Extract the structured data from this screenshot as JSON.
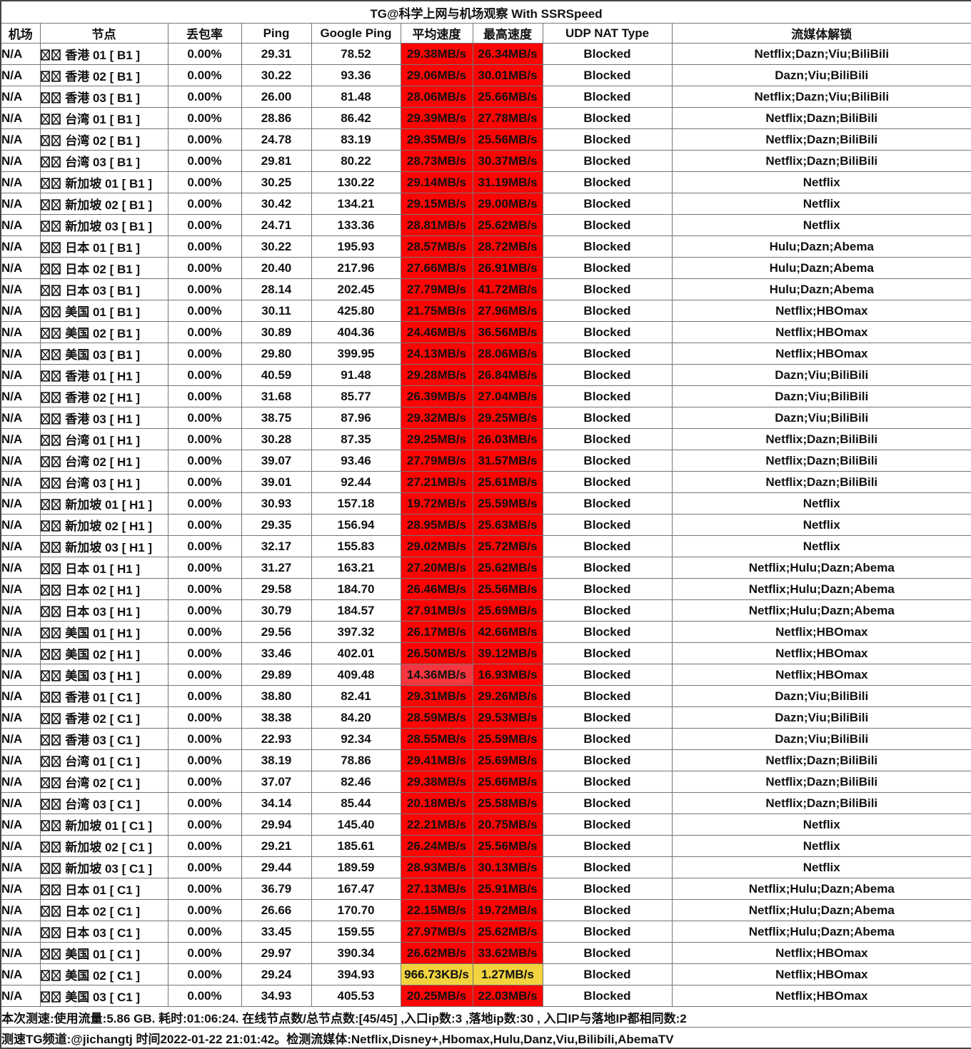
{
  "title": "TG@科学上网与机场观察 With SSRSpeed",
  "columns": [
    "机场",
    "节点",
    "丢包率",
    "Ping",
    "Google Ping",
    "平均速度",
    "最高速度",
    "UDP NAT Type",
    "流媒体解锁"
  ],
  "palette": {
    "red": "#fb0505",
    "light_red": "#f5353f",
    "yellow": "#f1d33e"
  },
  "rows": [
    {
      "airport": "N/A",
      "node": "香港 01 [ B1 ]",
      "loss": "0.00%",
      "ping": "29.31",
      "google_ping": "78.52",
      "avg_speed": "29.38MB/s",
      "avg_color": "red",
      "max_speed": "26.34MB/s",
      "max_color": "red",
      "udp_nat_type": "Blocked",
      "media": "Netflix;Dazn;Viu;BiliBili"
    },
    {
      "airport": "N/A",
      "node": "香港 02 [ B1 ]",
      "loss": "0.00%",
      "ping": "30.22",
      "google_ping": "93.36",
      "avg_speed": "29.06MB/s",
      "avg_color": "red",
      "max_speed": "30.01MB/s",
      "max_color": "red",
      "udp_nat_type": "Blocked",
      "media": "Dazn;Viu;BiliBili"
    },
    {
      "airport": "N/A",
      "node": "香港 03 [ B1 ]",
      "loss": "0.00%",
      "ping": "26.00",
      "google_ping": "81.48",
      "avg_speed": "28.06MB/s",
      "avg_color": "red",
      "max_speed": "25.66MB/s",
      "max_color": "red",
      "udp_nat_type": "Blocked",
      "media": "Netflix;Dazn;Viu;BiliBili"
    },
    {
      "airport": "N/A",
      "node": "台湾 01 [ B1 ]",
      "loss": "0.00%",
      "ping": "28.86",
      "google_ping": "86.42",
      "avg_speed": "29.39MB/s",
      "avg_color": "red",
      "max_speed": "27.78MB/s",
      "max_color": "red",
      "udp_nat_type": "Blocked",
      "media": "Netflix;Dazn;BiliBili"
    },
    {
      "airport": "N/A",
      "node": "台湾 02 [ B1 ]",
      "loss": "0.00%",
      "ping": "24.78",
      "google_ping": "83.19",
      "avg_speed": "29.35MB/s",
      "avg_color": "red",
      "max_speed": "25.56MB/s",
      "max_color": "red",
      "udp_nat_type": "Blocked",
      "media": "Netflix;Dazn;BiliBili"
    },
    {
      "airport": "N/A",
      "node": "台湾 03 [ B1 ]",
      "loss": "0.00%",
      "ping": "29.81",
      "google_ping": "80.22",
      "avg_speed": "28.73MB/s",
      "avg_color": "red",
      "max_speed": "30.37MB/s",
      "max_color": "red",
      "udp_nat_type": "Blocked",
      "media": "Netflix;Dazn;BiliBili"
    },
    {
      "airport": "N/A",
      "node": "新加坡 01 [ B1 ]",
      "loss": "0.00%",
      "ping": "30.25",
      "google_ping": "130.22",
      "avg_speed": "29.14MB/s",
      "avg_color": "red",
      "max_speed": "31.19MB/s",
      "max_color": "red",
      "udp_nat_type": "Blocked",
      "media": "Netflix"
    },
    {
      "airport": "N/A",
      "node": "新加坡 02 [ B1 ]",
      "loss": "0.00%",
      "ping": "30.42",
      "google_ping": "134.21",
      "avg_speed": "29.15MB/s",
      "avg_color": "red",
      "max_speed": "29.00MB/s",
      "max_color": "red",
      "udp_nat_type": "Blocked",
      "media": "Netflix"
    },
    {
      "airport": "N/A",
      "node": "新加坡 03 [ B1 ]",
      "loss": "0.00%",
      "ping": "24.71",
      "google_ping": "133.36",
      "avg_speed": "28.81MB/s",
      "avg_color": "red",
      "max_speed": "25.62MB/s",
      "max_color": "red",
      "udp_nat_type": "Blocked",
      "media": "Netflix"
    },
    {
      "airport": "N/A",
      "node": "日本 01 [ B1 ]",
      "loss": "0.00%",
      "ping": "30.22",
      "google_ping": "195.93",
      "avg_speed": "28.57MB/s",
      "avg_color": "red",
      "max_speed": "28.72MB/s",
      "max_color": "red",
      "udp_nat_type": "Blocked",
      "media": "Hulu;Dazn;Abema"
    },
    {
      "airport": "N/A",
      "node": "日本 02 [ B1 ]",
      "loss": "0.00%",
      "ping": "20.40",
      "google_ping": "217.96",
      "avg_speed": "27.66MB/s",
      "avg_color": "red",
      "max_speed": "26.91MB/s",
      "max_color": "red",
      "udp_nat_type": "Blocked",
      "media": "Hulu;Dazn;Abema"
    },
    {
      "airport": "N/A",
      "node": "日本 03 [ B1 ]",
      "loss": "0.00%",
      "ping": "28.14",
      "google_ping": "202.45",
      "avg_speed": "27.79MB/s",
      "avg_color": "red",
      "max_speed": "41.72MB/s",
      "max_color": "red",
      "udp_nat_type": "Blocked",
      "media": "Hulu;Dazn;Abema"
    },
    {
      "airport": "N/A",
      "node": "美国 01 [ B1 ]",
      "loss": "0.00%",
      "ping": "30.11",
      "google_ping": "425.80",
      "avg_speed": "21.75MB/s",
      "avg_color": "red",
      "max_speed": "27.96MB/s",
      "max_color": "red",
      "udp_nat_type": "Blocked",
      "media": "Netflix;HBOmax"
    },
    {
      "airport": "N/A",
      "node": "美国 02 [ B1 ]",
      "loss": "0.00%",
      "ping": "30.89",
      "google_ping": "404.36",
      "avg_speed": "24.46MB/s",
      "avg_color": "red",
      "max_speed": "36.56MB/s",
      "max_color": "red",
      "udp_nat_type": "Blocked",
      "media": "Netflix;HBOmax"
    },
    {
      "airport": "N/A",
      "node": "美国 03 [ B1 ]",
      "loss": "0.00%",
      "ping": "29.80",
      "google_ping": "399.95",
      "avg_speed": "24.13MB/s",
      "avg_color": "red",
      "max_speed": "28.06MB/s",
      "max_color": "red",
      "udp_nat_type": "Blocked",
      "media": "Netflix;HBOmax"
    },
    {
      "airport": "N/A",
      "node": "香港 01 [ H1 ]",
      "loss": "0.00%",
      "ping": "40.59",
      "google_ping": "91.48",
      "avg_speed": "29.28MB/s",
      "avg_color": "red",
      "max_speed": "26.84MB/s",
      "max_color": "red",
      "udp_nat_type": "Blocked",
      "media": "Dazn;Viu;BiliBili"
    },
    {
      "airport": "N/A",
      "node": "香港 02 [ H1 ]",
      "loss": "0.00%",
      "ping": "31.68",
      "google_ping": "85.77",
      "avg_speed": "26.39MB/s",
      "avg_color": "red",
      "max_speed": "27.04MB/s",
      "max_color": "red",
      "udp_nat_type": "Blocked",
      "media": "Dazn;Viu;BiliBili"
    },
    {
      "airport": "N/A",
      "node": "香港 03 [ H1 ]",
      "loss": "0.00%",
      "ping": "38.75",
      "google_ping": "87.96",
      "avg_speed": "29.32MB/s",
      "avg_color": "red",
      "max_speed": "29.25MB/s",
      "max_color": "red",
      "udp_nat_type": "Blocked",
      "media": "Dazn;Viu;BiliBili"
    },
    {
      "airport": "N/A",
      "node": "台湾 01 [ H1 ]",
      "loss": "0.00%",
      "ping": "30.28",
      "google_ping": "87.35",
      "avg_speed": "29.25MB/s",
      "avg_color": "red",
      "max_speed": "26.03MB/s",
      "max_color": "red",
      "udp_nat_type": "Blocked",
      "media": "Netflix;Dazn;BiliBili"
    },
    {
      "airport": "N/A",
      "node": "台湾 02 [ H1 ]",
      "loss": "0.00%",
      "ping": "39.07",
      "google_ping": "93.46",
      "avg_speed": "27.79MB/s",
      "avg_color": "red",
      "max_speed": "31.57MB/s",
      "max_color": "red",
      "udp_nat_type": "Blocked",
      "media": "Netflix;Dazn;BiliBili"
    },
    {
      "airport": "N/A",
      "node": "台湾 03 [ H1 ]",
      "loss": "0.00%",
      "ping": "39.01",
      "google_ping": "92.44",
      "avg_speed": "27.21MB/s",
      "avg_color": "red",
      "max_speed": "25.61MB/s",
      "max_color": "red",
      "udp_nat_type": "Blocked",
      "media": "Netflix;Dazn;BiliBili"
    },
    {
      "airport": "N/A",
      "node": "新加坡 01 [ H1 ]",
      "loss": "0.00%",
      "ping": "30.93",
      "google_ping": "157.18",
      "avg_speed": "19.72MB/s",
      "avg_color": "red",
      "max_speed": "25.59MB/s",
      "max_color": "red",
      "udp_nat_type": "Blocked",
      "media": "Netflix"
    },
    {
      "airport": "N/A",
      "node": "新加坡 02 [ H1 ]",
      "loss": "0.00%",
      "ping": "29.35",
      "google_ping": "156.94",
      "avg_speed": "28.95MB/s",
      "avg_color": "red",
      "max_speed": "25.63MB/s",
      "max_color": "red",
      "udp_nat_type": "Blocked",
      "media": "Netflix"
    },
    {
      "airport": "N/A",
      "node": "新加坡 03 [ H1 ]",
      "loss": "0.00%",
      "ping": "32.17",
      "google_ping": "155.83",
      "avg_speed": "29.02MB/s",
      "avg_color": "red",
      "max_speed": "25.72MB/s",
      "max_color": "red",
      "udp_nat_type": "Blocked",
      "media": "Netflix"
    },
    {
      "airport": "N/A",
      "node": "日本 01 [ H1 ]",
      "loss": "0.00%",
      "ping": "31.27",
      "google_ping": "163.21",
      "avg_speed": "27.20MB/s",
      "avg_color": "red",
      "max_speed": "25.62MB/s",
      "max_color": "red",
      "udp_nat_type": "Blocked",
      "media": "Netflix;Hulu;Dazn;Abema"
    },
    {
      "airport": "N/A",
      "node": "日本 02 [ H1 ]",
      "loss": "0.00%",
      "ping": "29.58",
      "google_ping": "184.70",
      "avg_speed": "26.46MB/s",
      "avg_color": "red",
      "max_speed": "25.56MB/s",
      "max_color": "red",
      "udp_nat_type": "Blocked",
      "media": "Netflix;Hulu;Dazn;Abema"
    },
    {
      "airport": "N/A",
      "node": "日本 03 [ H1 ]",
      "loss": "0.00%",
      "ping": "30.79",
      "google_ping": "184.57",
      "avg_speed": "27.91MB/s",
      "avg_color": "red",
      "max_speed": "25.69MB/s",
      "max_color": "red",
      "udp_nat_type": "Blocked",
      "media": "Netflix;Hulu;Dazn;Abema"
    },
    {
      "airport": "N/A",
      "node": "美国 01 [ H1 ]",
      "loss": "0.00%",
      "ping": "29.56",
      "google_ping": "397.32",
      "avg_speed": "26.17MB/s",
      "avg_color": "red",
      "max_speed": "42.66MB/s",
      "max_color": "red",
      "udp_nat_type": "Blocked",
      "media": "Netflix;HBOmax"
    },
    {
      "airport": "N/A",
      "node": "美国 02 [ H1 ]",
      "loss": "0.00%",
      "ping": "33.46",
      "google_ping": "402.01",
      "avg_speed": "26.50MB/s",
      "avg_color": "red",
      "max_speed": "39.12MB/s",
      "max_color": "red",
      "udp_nat_type": "Blocked",
      "media": "Netflix;HBOmax"
    },
    {
      "airport": "N/A",
      "node": "美国 03 [ H1 ]",
      "loss": "0.00%",
      "ping": "29.89",
      "google_ping": "409.48",
      "avg_speed": "14.36MB/s",
      "avg_color": "light_red",
      "max_speed": "16.93MB/s",
      "max_color": "red",
      "udp_nat_type": "Blocked",
      "media": "Netflix;HBOmax"
    },
    {
      "airport": "N/A",
      "node": "香港 01 [ C1 ]",
      "loss": "0.00%",
      "ping": "38.80",
      "google_ping": "82.41",
      "avg_speed": "29.31MB/s",
      "avg_color": "red",
      "max_speed": "29.26MB/s",
      "max_color": "red",
      "udp_nat_type": "Blocked",
      "media": "Dazn;Viu;BiliBili"
    },
    {
      "airport": "N/A",
      "node": "香港 02 [ C1 ]",
      "loss": "0.00%",
      "ping": "38.38",
      "google_ping": "84.20",
      "avg_speed": "28.59MB/s",
      "avg_color": "red",
      "max_speed": "29.53MB/s",
      "max_color": "red",
      "udp_nat_type": "Blocked",
      "media": "Dazn;Viu;BiliBili"
    },
    {
      "airport": "N/A",
      "node": "香港 03 [ C1 ]",
      "loss": "0.00%",
      "ping": "22.93",
      "google_ping": "92.34",
      "avg_speed": "28.55MB/s",
      "avg_color": "red",
      "max_speed": "25.59MB/s",
      "max_color": "red",
      "udp_nat_type": "Blocked",
      "media": "Dazn;Viu;BiliBili"
    },
    {
      "airport": "N/A",
      "node": "台湾 01 [ C1 ]",
      "loss": "0.00%",
      "ping": "38.19",
      "google_ping": "78.86",
      "avg_speed": "29.41MB/s",
      "avg_color": "red",
      "max_speed": "25.69MB/s",
      "max_color": "red",
      "udp_nat_type": "Blocked",
      "media": "Netflix;Dazn;BiliBili"
    },
    {
      "airport": "N/A",
      "node": "台湾 02 [ C1 ]",
      "loss": "0.00%",
      "ping": "37.07",
      "google_ping": "82.46",
      "avg_speed": "29.38MB/s",
      "avg_color": "red",
      "max_speed": "25.66MB/s",
      "max_color": "red",
      "udp_nat_type": "Blocked",
      "media": "Netflix;Dazn;BiliBili"
    },
    {
      "airport": "N/A",
      "node": "台湾 03 [ C1 ]",
      "loss": "0.00%",
      "ping": "34.14",
      "google_ping": "85.44",
      "avg_speed": "20.18MB/s",
      "avg_color": "red",
      "max_speed": "25.58MB/s",
      "max_color": "red",
      "udp_nat_type": "Blocked",
      "media": "Netflix;Dazn;BiliBili"
    },
    {
      "airport": "N/A",
      "node": "新加坡 01 [ C1 ]",
      "loss": "0.00%",
      "ping": "29.94",
      "google_ping": "145.40",
      "avg_speed": "22.21MB/s",
      "avg_color": "red",
      "max_speed": "20.75MB/s",
      "max_color": "red",
      "udp_nat_type": "Blocked",
      "media": "Netflix"
    },
    {
      "airport": "N/A",
      "node": "新加坡 02 [ C1 ]",
      "loss": "0.00%",
      "ping": "29.21",
      "google_ping": "185.61",
      "avg_speed": "26.24MB/s",
      "avg_color": "red",
      "max_speed": "25.56MB/s",
      "max_color": "red",
      "udp_nat_type": "Blocked",
      "media": "Netflix"
    },
    {
      "airport": "N/A",
      "node": "新加坡 03 [ C1 ]",
      "loss": "0.00%",
      "ping": "29.44",
      "google_ping": "189.59",
      "avg_speed": "28.93MB/s",
      "avg_color": "red",
      "max_speed": "30.13MB/s",
      "max_color": "red",
      "udp_nat_type": "Blocked",
      "media": "Netflix"
    },
    {
      "airport": "N/A",
      "node": "日本 01 [ C1 ]",
      "loss": "0.00%",
      "ping": "36.79",
      "google_ping": "167.47",
      "avg_speed": "27.13MB/s",
      "avg_color": "red",
      "max_speed": "25.91MB/s",
      "max_color": "red",
      "udp_nat_type": "Blocked",
      "media": "Netflix;Hulu;Dazn;Abema"
    },
    {
      "airport": "N/A",
      "node": "日本 02 [ C1 ]",
      "loss": "0.00%",
      "ping": "26.66",
      "google_ping": "170.70",
      "avg_speed": "22.15MB/s",
      "avg_color": "red",
      "max_speed": "19.72MB/s",
      "max_color": "red",
      "udp_nat_type": "Blocked",
      "media": "Netflix;Hulu;Dazn;Abema"
    },
    {
      "airport": "N/A",
      "node": "日本 03 [ C1 ]",
      "loss": "0.00%",
      "ping": "33.45",
      "google_ping": "159.55",
      "avg_speed": "27.97MB/s",
      "avg_color": "red",
      "max_speed": "25.62MB/s",
      "max_color": "red",
      "udp_nat_type": "Blocked",
      "media": "Netflix;Hulu;Dazn;Abema"
    },
    {
      "airport": "N/A",
      "node": "美国 01 [ C1 ]",
      "loss": "0.00%",
      "ping": "29.97",
      "google_ping": "390.34",
      "avg_speed": "26.62MB/s",
      "avg_color": "red",
      "max_speed": "33.62MB/s",
      "max_color": "red",
      "udp_nat_type": "Blocked",
      "media": "Netflix;HBOmax"
    },
    {
      "airport": "N/A",
      "node": "美国 02 [ C1 ]",
      "loss": "0.00%",
      "ping": "29.24",
      "google_ping": "394.93",
      "avg_speed": "966.73KB/s",
      "avg_color": "yellow",
      "max_speed": "1.27MB/s",
      "max_color": "yellow",
      "udp_nat_type": "Blocked",
      "media": "Netflix;HBOmax"
    },
    {
      "airport": "N/A",
      "node": "美国 03 [ C1 ]",
      "loss": "0.00%",
      "ping": "34.93",
      "google_ping": "405.53",
      "avg_speed": "20.25MB/s",
      "avg_color": "red",
      "max_speed": "22.03MB/s",
      "max_color": "red",
      "udp_nat_type": "Blocked",
      "media": "Netflix;HBOmax"
    }
  ],
  "footer": {
    "summary": "本次测速:使用流量:5.86 GB. 耗时:01:06:24. 在线节点数/总节点数:[45/45] ,入口ip数:3 ,落地ip数:30 , 入口IP与落地IP都相同数:2",
    "channel": "测速TG频道:@jichangtj 时间2022-01-22 21:01:42。检测流媒体:Netflix,Disney+,Hbomax,Hulu,Danz,Viu,Bilibili,AbemaTV"
  }
}
